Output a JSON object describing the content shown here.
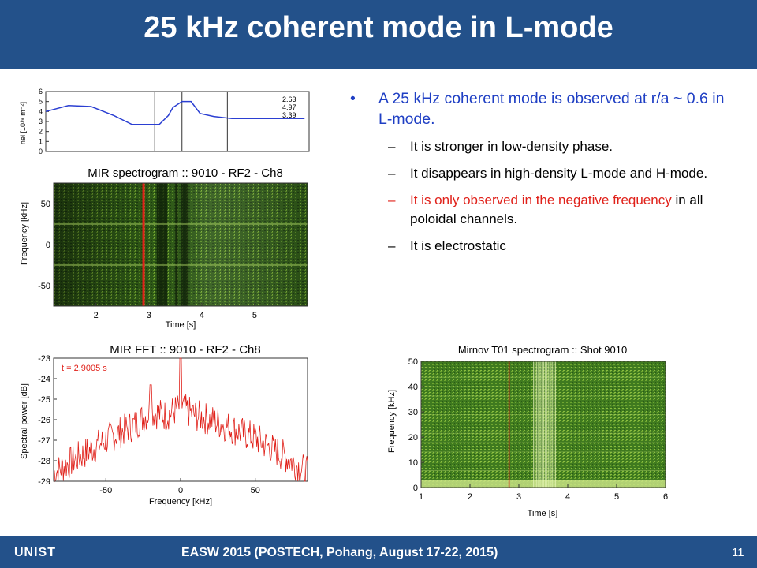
{
  "slide": {
    "title": "25 kHz coherent mode in L-mode",
    "footer": {
      "logo": "UNIST",
      "conference": "EASW 2015 (POSTECH, Pohang, August 17-22, 2015)",
      "page_number": "11"
    },
    "bullets": {
      "main": "A 25 kHz coherent mode is observed at r/a ~ 0.6 in L-mode.",
      "sub1": "It is stronger in low-density phase.",
      "sub2": "It disappears in high-density L-mode and H-mode.",
      "sub3_red_a": "It is only observed in the negative",
      "sub3_red_b": "frequency",
      "sub3_black": " in all poloidal channels.",
      "sub4": "It is electrostatic",
      "dash": "–",
      "dot": "•"
    }
  },
  "chart_data": [
    {
      "type": "line",
      "ylabel": "nel [10¹⁹ m⁻²]",
      "ylim": [
        0,
        6
      ],
      "y_ticks": [
        "0",
        "1",
        "2",
        "3",
        "4",
        "5",
        "6"
      ],
      "x": [
        0.5,
        1.0,
        1.5,
        2.0,
        2.4,
        2.8,
        3.0,
        3.2,
        3.3,
        3.5,
        3.7,
        3.9,
        4.2,
        4.6,
        5.0,
        5.4,
        5.8,
        6.2
      ],
      "values": [
        4.0,
        4.6,
        4.5,
        3.6,
        2.7,
        2.7,
        2.7,
        3.6,
        4.4,
        5.0,
        5.0,
        3.8,
        3.5,
        3.3,
        3.3,
        3.3,
        3.3,
        3.3
      ],
      "xlim": [
        0.5,
        6.3
      ],
      "markers_x": [
        2.9,
        3.5,
        4.5
      ],
      "annotations": [
        "2.63",
        "4.97",
        "3.39"
      ]
    },
    {
      "type": "heatmap",
      "title": "MIR spectrogram  ::  9010 - RF2 - Ch8",
      "xlabel": "Time [s]",
      "ylabel": "Frequency [kHz]",
      "x_ticks": [
        "2",
        "3",
        "4",
        "5"
      ],
      "y_ticks": [
        "50",
        "0",
        "-50"
      ],
      "xlim": [
        1.2,
        6.0
      ],
      "ylim": [
        -75,
        75
      ],
      "marker_x": 2.9,
      "coherent_modes_khz": [
        25,
        -25
      ],
      "colors": {
        "low": "#0f2a0c",
        "high": "#9ccb3c",
        "marker": "#e0211a"
      }
    },
    {
      "type": "line",
      "title": "MIR FFT  ::  9010 - RF2 - Ch8",
      "annotation": "t = 2.9005 s",
      "xlabel": "Frequency [kHz]",
      "ylabel": "Spectral power [dB]",
      "x_ticks": [
        "-50",
        "0",
        "50"
      ],
      "y_ticks": [
        "-23",
        "-24",
        "-25",
        "-26",
        "-27",
        "-28",
        "-29"
      ],
      "xlim": [
        -85,
        85
      ],
      "ylim": [
        -29,
        -23
      ],
      "series_color": "#e0211a",
      "x": [
        -85,
        -70,
        -50,
        -30,
        -20,
        -10,
        0,
        10,
        20,
        30,
        50,
        70,
        85
      ],
      "values": [
        -28.6,
        -27.9,
        -27.0,
        -26.2,
        -25.6,
        -25.8,
        -25.4,
        -25.8,
        -26.0,
        -26.3,
        -26.9,
        -27.8,
        -28.6
      ],
      "peaks": [
        {
          "x": -20,
          "y": -24.3
        },
        {
          "x": 0,
          "y": -23.0
        }
      ]
    },
    {
      "type": "heatmap",
      "title": "Mirnov T01 spectrogram :: Shot 9010",
      "xlabel": "Time [s]",
      "ylabel": "Frequency [kHz]",
      "x_ticks": [
        "1",
        "2",
        "3",
        "4",
        "5",
        "6"
      ],
      "y_ticks": [
        "0",
        "10",
        "20",
        "30",
        "40",
        "50"
      ],
      "xlim": [
        1,
        6
      ],
      "ylim": [
        0,
        50
      ],
      "marker_x": 2.8,
      "colors": {
        "low": "#1d4a10",
        "high": "#cfe88a",
        "marker": "#e0211a"
      }
    }
  ]
}
